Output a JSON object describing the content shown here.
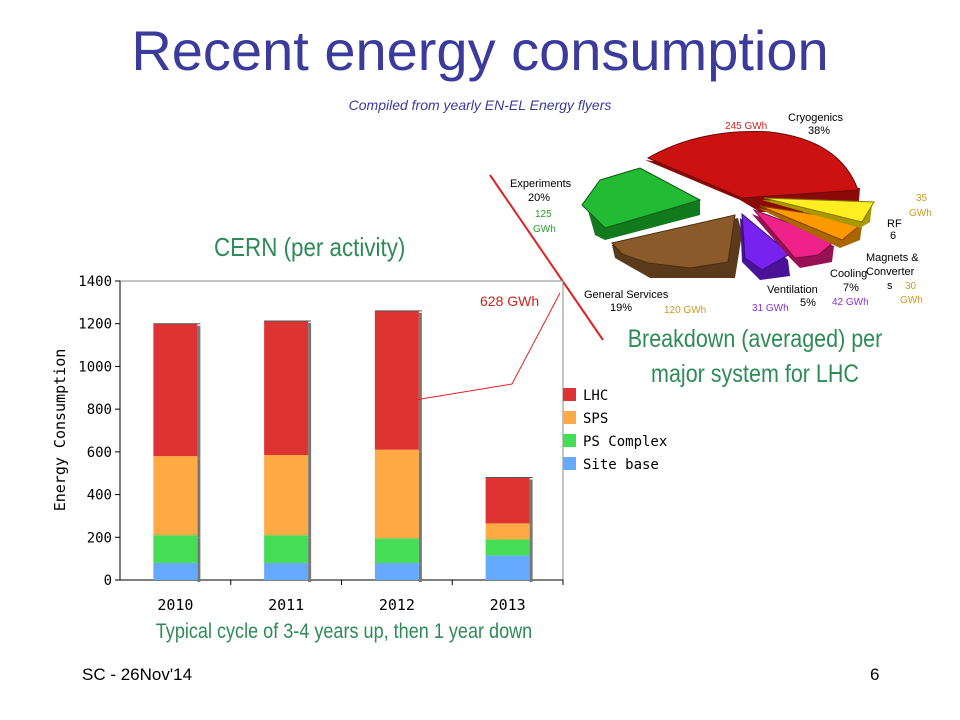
{
  "slide": {
    "title": "Recent energy consumption",
    "subtitle": "Compiled from yearly EN-EL Energy flyers",
    "cern_label": "CERN (per activity)",
    "breakdown_line1": "Breakdown (averaged) per",
    "breakdown_line2": "major system for LHC",
    "cycle_note": "Typical cycle of 3-4 years up, then 1 year down",
    "footer_left": "SC - 26Nov'14",
    "page_number": "6",
    "callout_628": "628 GWh"
  },
  "chart_data": [
    {
      "type": "bar",
      "stacked": true,
      "title": "",
      "xlabel": "",
      "ylabel": "Energy Consumption",
      "ylim": [
        0,
        1400
      ],
      "yticks": [
        0,
        200,
        400,
        600,
        800,
        1000,
        1200,
        1400
      ],
      "grid": false,
      "legend_position": "right",
      "categories": [
        "2010",
        "2011",
        "2012",
        "2013"
      ],
      "series": [
        {
          "name": "Site base",
          "color": "#66aaff",
          "values": [
            80,
            80,
            80,
            115
          ]
        },
        {
          "name": "PS Complex",
          "color": "#44dd55",
          "values": [
            130,
            130,
            115,
            75
          ]
        },
        {
          "name": "SPS",
          "color": "#ffaa44",
          "values": [
            370,
            375,
            415,
            75
          ]
        },
        {
          "name": "LHC",
          "color": "#dd3333",
          "values": [
            620,
            628,
            650,
            215
          ]
        }
      ]
    },
    {
      "type": "pie",
      "style": "3d-exploded",
      "slices": [
        {
          "label": "Cryogenics",
          "percent": "38%",
          "energy": "245 GWh",
          "value": 38,
          "color": "#cc1111"
        },
        {
          "label": "RF",
          "percent": "6",
          "energy": "35 GWh",
          "value": 6,
          "color": "#ffee22"
        },
        {
          "label": "Magnets & Converters",
          "percent": "",
          "energy": "30 GWh",
          "value": 5,
          "color": "#ff9900"
        },
        {
          "label": "Cooling",
          "percent": "7%",
          "energy": "42 GWh",
          "value": 7,
          "color": "#ee2288"
        },
        {
          "label": "Ventilation",
          "percent": "5%",
          "energy": "31 GWh",
          "value": 5,
          "color": "#7722ee"
        },
        {
          "label": "General Services",
          "percent": "19%",
          "energy": "120 GWh",
          "value": 19,
          "color": "#8b5a2b"
        },
        {
          "label": "Experiments",
          "percent": "20%",
          "energy": "125 GWh",
          "value": 20,
          "color": "#22bb33"
        }
      ],
      "text_labels": {
        "cryo": "Cryogenics",
        "cryo_pct": "38%",
        "cryo_gwh": "245 GWh",
        "rf": "RF",
        "rf_pct": "6",
        "rf_gwh_1": "35",
        "rf_gwh_2": "GWh",
        "magnets_1": "Magnets &",
        "magnets_2": "Converter",
        "magnets_3": "s",
        "magnets_gwh_1": "30",
        "magnets_gwh_2": "GWh",
        "cooling": "Cooling",
        "cooling_pct": "7%",
        "cooling_gwh": "42 GWh",
        "ventilation": "Ventilation",
        "ventilation_pct": "5%",
        "ventilation_gwh": "31 GWh",
        "general_1": "General Services",
        "general_pct": "19%",
        "general_gwh": "120 GWh",
        "exp": "Experiments",
        "exp_pct": "20%",
        "exp_gwh_1": "125",
        "exp_gwh_2": "GWh"
      }
    }
  ]
}
